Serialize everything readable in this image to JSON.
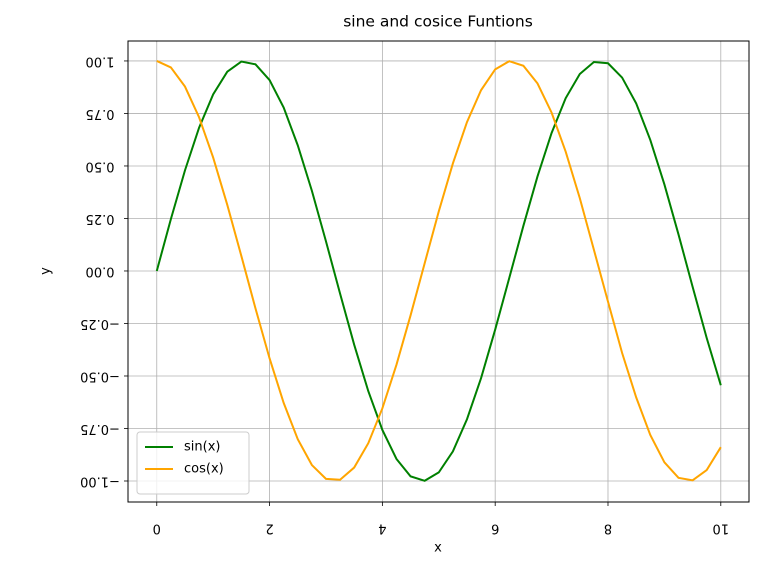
{
  "chart_data": {
    "type": "line",
    "title": "sine and cosice Funtions",
    "x_label": "x",
    "y_label": "y",
    "x": [
      0,
      0.25,
      0.5,
      0.75,
      1,
      1.25,
      1.5,
      1.75,
      2,
      2.25,
      2.5,
      2.75,
      3,
      3.25,
      3.5,
      3.75,
      4,
      4.25,
      4.5,
      4.75,
      5,
      5.25,
      5.5,
      5.75,
      6,
      6.25,
      6.5,
      6.75,
      7,
      7.25,
      7.5,
      7.75,
      8,
      8.25,
      8.5,
      8.75,
      9,
      9.25,
      9.5,
      9.75,
      10
    ],
    "series": [
      {
        "name": "sin(x)",
        "color": "#008000",
        "values": [
          0,
          0.247,
          0.479,
          0.682,
          0.841,
          0.949,
          0.997,
          0.984,
          0.909,
          0.778,
          0.598,
          0.382,
          0.141,
          -0.108,
          -0.351,
          -0.572,
          -0.757,
          -0.895,
          -0.978,
          -0.999,
          -0.959,
          -0.859,
          -0.706,
          -0.51,
          -0.279,
          -0.033,
          0.215,
          0.45,
          0.657,
          0.823,
          0.938,
          0.995,
          0.989,
          0.921,
          0.798,
          0.624,
          0.412,
          0.174,
          -0.075,
          -0.319,
          -0.544
        ]
      },
      {
        "name": "cos(x)",
        "color": "#ffa500",
        "values": [
          1,
          0.969,
          0.878,
          0.732,
          0.54,
          0.315,
          0.071,
          -0.178,
          -0.416,
          -0.628,
          -0.801,
          -0.924,
          -0.99,
          -0.994,
          -0.936,
          -0.82,
          -0.654,
          -0.446,
          -0.211,
          0.037,
          0.284,
          0.512,
          0.709,
          0.861,
          0.96,
          0.999,
          0.977,
          0.893,
          0.754,
          0.568,
          0.347,
          0.101,
          -0.146,
          -0.39,
          -0.602,
          -0.781,
          -0.911,
          -0.985,
          -0.997,
          -0.948,
          -0.839
        ]
      }
    ],
    "xlim": [
      -0.51,
      10.5
    ],
    "ylim": [
      -1.1,
      1.095
    ],
    "xticks": [
      0,
      2,
      4,
      6,
      8,
      10
    ],
    "yticks": [
      {
        "value": -1,
        "label": "−1.00"
      },
      {
        "value": -0.75,
        "label": "−0.75"
      },
      {
        "value": -0.5,
        "label": "−0.50"
      },
      {
        "value": -0.25,
        "label": "−0.25"
      },
      {
        "value": 0,
        "label": "0.00"
      },
      {
        "value": 0.25,
        "label": "0.25"
      },
      {
        "value": 0.5,
        "label": "0.50"
      },
      {
        "value": 0.75,
        "label": "0.75"
      },
      {
        "value": 1,
        "label": "1.00"
      }
    ],
    "grid": true,
    "legend": "lower left"
  }
}
